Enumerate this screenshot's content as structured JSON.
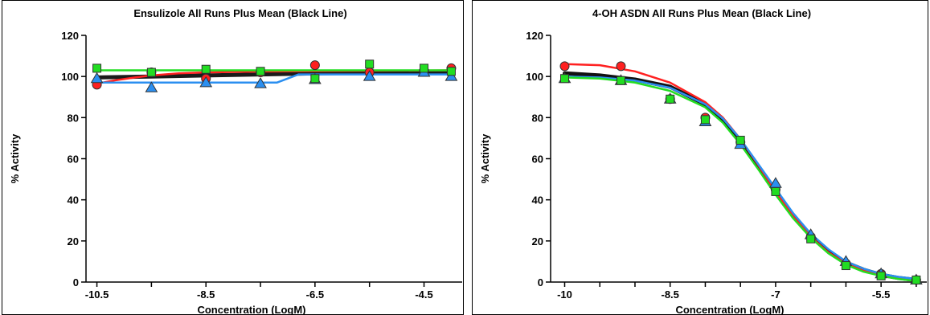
{
  "charts": [
    {
      "type": "scatter",
      "title": "Ensulizole All Runs Plus Mean (Black Line)",
      "xlabel": "Concentration (LogM)",
      "ylabel": "% Activity",
      "xlim": [
        -10.7,
        -3.8
      ],
      "ylim": [
        0,
        120
      ],
      "x_ticks": [
        -10.5,
        -9.5,
        -8.5,
        -7.5,
        -6.5,
        -5.5,
        -4.5
      ],
      "x_tick_labels": [
        "-10.5",
        "",
        "-8.5",
        "",
        "-6.5",
        "",
        "-4.5"
      ],
      "y_ticks": [
        0,
        20,
        40,
        60,
        80,
        100,
        120
      ],
      "y_tick_labels": [
        "0",
        "20",
        "40",
        "60",
        "80",
        "100",
        "120"
      ],
      "series": [
        {
          "color": "#1a1a1a",
          "marker": "none",
          "x": [
            -10.5,
            -9.5,
            -8.5,
            -7.5,
            -6.5,
            -5.5,
            -4.5,
            -4.0
          ],
          "y": [
            99.5,
            100.0,
            100.5,
            101.0,
            101.5,
            101.8,
            102.0,
            102.0
          ]
        },
        {
          "color": "#ff2020",
          "marker": "circle",
          "x": [
            -10.5,
            -9.5,
            -8.5,
            -7.5,
            -6.5,
            -5.5,
            -4.5,
            -4.0
          ],
          "y": [
            96,
            102,
            99,
            102,
            105.5,
            102,
            103,
            104
          ],
          "curve_x": [
            -10.5,
            -10.2,
            -9.8,
            -9.5,
            -9.0,
            -8.5,
            -8.0,
            -7.5,
            -6.5,
            -4.0
          ],
          "curve_y": [
            96.5,
            98.0,
            99.5,
            100.5,
            101.5,
            102.0,
            102.2,
            102.4,
            102.6,
            103.0
          ]
        },
        {
          "color": "#2b8ff0",
          "marker": "triangle",
          "x": [
            -10.5,
            -9.5,
            -8.5,
            -7.5,
            -6.5,
            -5.5,
            -4.5,
            -4.0
          ],
          "y": [
            99,
            94.5,
            97,
            96.5,
            98.5,
            100,
            102,
            100
          ],
          "curve_x": [
            -10.5,
            -7.2,
            -7.0,
            -6.8,
            -4.0
          ],
          "curve_y": [
            97.0,
            97.0,
            99.0,
            101.0,
            101.0
          ]
        },
        {
          "color": "#22dd22",
          "marker": "square",
          "x": [
            -10.5,
            -9.5,
            -8.5,
            -7.5,
            -6.5,
            -5.5,
            -4.5,
            -4.0
          ],
          "y": [
            104,
            102,
            103.5,
            102.5,
            99,
            106,
            104,
            102.5
          ],
          "curve_x": [
            -10.5,
            -4.0
          ],
          "curve_y": [
            103.0,
            103.0
          ]
        }
      ]
    },
    {
      "type": "scatter",
      "title": "4-OH ASDN All Runs Plus Mean (Black Line)",
      "xlabel": "Concentration (LogM)",
      "ylabel": "% Activity",
      "xlim": [
        -10.2,
        -4.85
      ],
      "ylim": [
        0,
        120
      ],
      "x_ticks": [
        -10.0,
        -9.5,
        -9.0,
        -8.5,
        -8.0,
        -7.5,
        -7.0,
        -6.5,
        -6.0,
        -5.5,
        -5.0
      ],
      "x_tick_labels": [
        "-10",
        "",
        "",
        "-8.5",
        "",
        "",
        "-7",
        "",
        "",
        "-5.5",
        ""
      ],
      "y_ticks": [
        0,
        20,
        40,
        60,
        80,
        100,
        120
      ],
      "y_tick_labels": [
        "0",
        "20",
        "40",
        "60",
        "80",
        "100",
        "120"
      ],
      "series": [
        {
          "color": "#111111",
          "marker": "none",
          "curve_x": [
            -10.0,
            -9.5,
            -9.0,
            -8.5,
            -8.0,
            -7.75,
            -7.5,
            -7.25,
            -7.0,
            -6.75,
            -6.5,
            -6.25,
            -6.0,
            -5.75,
            -5.5,
            -5.25,
            -5.0
          ],
          "curve_y": [
            101.5,
            100.5,
            98.5,
            95.0,
            86.5,
            79.0,
            68.5,
            56.5,
            44.0,
            32.0,
            22.5,
            15.0,
            9.5,
            6.0,
            3.5,
            2.0,
            1.0
          ]
        },
        {
          "color": "#ff2020",
          "marker": "circle",
          "x": [
            -10.0,
            -9.2,
            -8.5,
            -8.0,
            -7.5,
            -7.0,
            -6.5,
            -6.0,
            -5.5,
            -5.0
          ],
          "y": [
            105,
            105,
            89,
            80,
            68,
            45,
            22,
            9,
            4,
            1
          ],
          "curve_x": [
            -10.0,
            -9.5,
            -9.0,
            -8.5,
            -8.0,
            -7.75,
            -7.5,
            -7.25,
            -7.0,
            -6.75,
            -6.5,
            -6.25,
            -6.0,
            -5.75,
            -5.5,
            -5.25,
            -5.0
          ],
          "curve_y": [
            106.0,
            105.5,
            102.5,
            97.0,
            87.5,
            80.0,
            69.5,
            57.0,
            44.0,
            32.0,
            22.0,
            14.5,
            9.0,
            5.5,
            3.5,
            2.0,
            1.0
          ]
        },
        {
          "color": "#2b8ff0",
          "marker": "triangle",
          "x": [
            -10.0,
            -9.2,
            -8.5,
            -8.0,
            -7.5,
            -7.0,
            -6.5,
            -6.0,
            -5.5,
            -5.0
          ],
          "y": [
            99,
            98,
            89,
            78,
            67,
            48,
            23,
            10,
            4,
            1
          ],
          "curve_x": [
            -10.0,
            -9.5,
            -9.0,
            -8.5,
            -8.0,
            -7.75,
            -7.5,
            -7.25,
            -7.0,
            -6.75,
            -6.5,
            -6.25,
            -6.0,
            -5.75,
            -5.5,
            -5.25,
            -5.0
          ],
          "curve_y": [
            100.0,
            99.5,
            98.0,
            94.5,
            86.5,
            79.5,
            69.5,
            57.5,
            45.5,
            33.5,
            23.5,
            16.0,
            10.0,
            6.5,
            4.0,
            2.5,
            1.5
          ]
        },
        {
          "color": "#22dd22",
          "marker": "square",
          "x": [
            -10.0,
            -9.2,
            -8.5,
            -8.0,
            -7.5,
            -7.0,
            -6.5,
            -6.0,
            -5.5,
            -5.0
          ],
          "y": [
            99,
            98,
            89,
            79,
            69,
            44,
            21,
            8,
            3,
            1
          ],
          "curve_x": [
            -10.0,
            -9.5,
            -9.0,
            -8.5,
            -8.0,
            -7.75,
            -7.5,
            -7.25,
            -7.0,
            -6.75,
            -6.5,
            -6.25,
            -6.0,
            -5.75,
            -5.5,
            -5.25,
            -5.0
          ],
          "curve_y": [
            99.5,
            99.0,
            97.0,
            93.0,
            85.0,
            77.5,
            67.0,
            55.0,
            42.5,
            31.0,
            21.5,
            14.0,
            8.5,
            5.0,
            3.0,
            1.5,
            0.5
          ]
        }
      ]
    }
  ]
}
